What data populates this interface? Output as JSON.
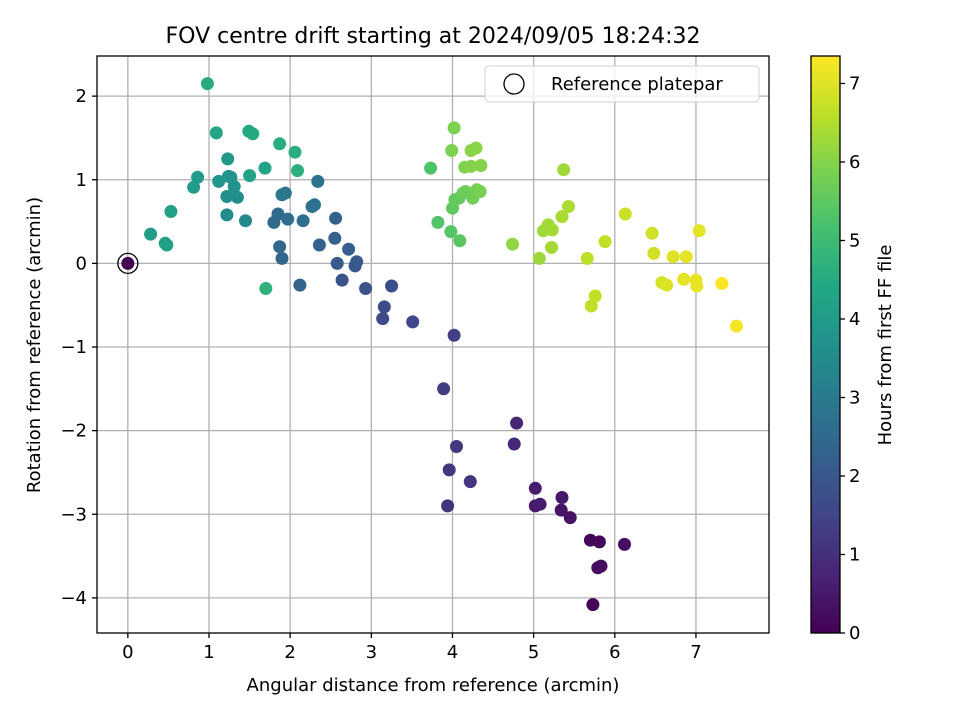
{
  "chart_data": {
    "type": "scatter",
    "title": "FOV centre drift starting at 2024/09/05 18:24:32",
    "xlabel": "Angular distance from reference (arcmin)",
    "ylabel": "Rotation from reference (arcmin)",
    "xlim": [
      -0.38,
      7.9
    ],
    "ylim": [
      -4.42,
      2.48
    ],
    "xticks": [
      0,
      1,
      2,
      3,
      4,
      5,
      6,
      7
    ],
    "yticks": [
      -4,
      -3,
      -2,
      -1,
      0,
      1,
      2
    ],
    "grid": true,
    "colormap": "viridis",
    "colorbar": {
      "label": "Hours from first FF file",
      "range": [
        0,
        7.35
      ],
      "ticks": [
        0,
        1,
        2,
        3,
        4,
        5,
        6,
        7
      ]
    },
    "legend": {
      "position": "upper-right",
      "entries": [
        {
          "label": "Reference platepar",
          "marker": "open-circle",
          "color": "#000000"
        }
      ]
    },
    "reference_point": {
      "x": 0,
      "y": 0,
      "hours": 0
    },
    "points": [
      {
        "x": 5.73,
        "y": -4.08,
        "hours": 0.08
      },
      {
        "x": 5.7,
        "y": -3.31,
        "hours": 0.12
      },
      {
        "x": 5.81,
        "y": -3.33,
        "hours": 0.16
      },
      {
        "x": 5.79,
        "y": -3.64,
        "hours": 0.2
      },
      {
        "x": 5.83,
        "y": -3.62,
        "hours": 0.24
      },
      {
        "x": 6.12,
        "y": -3.36,
        "hours": 0.28
      },
      {
        "x": 5.45,
        "y": -3.04,
        "hours": 0.35
      },
      {
        "x": 5.34,
        "y": -2.95,
        "hours": 0.4
      },
      {
        "x": 5.35,
        "y": -2.8,
        "hours": 0.45
      },
      {
        "x": 5.02,
        "y": -2.9,
        "hours": 0.5
      },
      {
        "x": 5.08,
        "y": -2.88,
        "hours": 0.55
      },
      {
        "x": 5.02,
        "y": -2.69,
        "hours": 0.6
      },
      {
        "x": 4.79,
        "y": -1.91,
        "hours": 0.75
      },
      {
        "x": 4.76,
        "y": -2.16,
        "hours": 0.8
      },
      {
        "x": 3.94,
        "y": -2.9,
        "hours": 1.05
      },
      {
        "x": 4.22,
        "y": -2.61,
        "hours": 1.1
      },
      {
        "x": 3.96,
        "y": -2.47,
        "hours": 1.15
      },
      {
        "x": 4.05,
        "y": -2.19,
        "hours": 1.2
      },
      {
        "x": 3.89,
        "y": -1.5,
        "hours": 1.3
      },
      {
        "x": 4.02,
        "y": -0.86,
        "hours": 1.4
      },
      {
        "x": 3.51,
        "y": -0.7,
        "hours": 1.55
      },
      {
        "x": 3.14,
        "y": -0.66,
        "hours": 1.65
      },
      {
        "x": 3.16,
        "y": -0.52,
        "hours": 1.7
      },
      {
        "x": 3.25,
        "y": -0.27,
        "hours": 1.75
      },
      {
        "x": 2.93,
        "y": -0.3,
        "hours": 1.85
      },
      {
        "x": 2.64,
        "y": -0.2,
        "hours": 1.9
      },
      {
        "x": 2.8,
        "y": -0.03,
        "hours": 2.0
      },
      {
        "x": 2.82,
        "y": 0.02,
        "hours": 2.05
      },
      {
        "x": 2.58,
        "y": 0.0,
        "hours": 2.1
      },
      {
        "x": 2.72,
        "y": 0.17,
        "hours": 2.15
      },
      {
        "x": 2.55,
        "y": 0.3,
        "hours": 2.2
      },
      {
        "x": 2.36,
        "y": 0.22,
        "hours": 2.25
      },
      {
        "x": 2.56,
        "y": 0.54,
        "hours": 2.3
      },
      {
        "x": 2.12,
        "y": -0.26,
        "hours": 2.35
      },
      {
        "x": 1.9,
        "y": 0.06,
        "hours": 2.4
      },
      {
        "x": 1.87,
        "y": 0.2,
        "hours": 2.45
      },
      {
        "x": 1.85,
        "y": 0.59,
        "hours": 2.5
      },
      {
        "x": 1.8,
        "y": 0.49,
        "hours": 2.55
      },
      {
        "x": 1.97,
        "y": 0.53,
        "hours": 2.6
      },
      {
        "x": 2.16,
        "y": 0.51,
        "hours": 2.65
      },
      {
        "x": 2.27,
        "y": 0.68,
        "hours": 2.7
      },
      {
        "x": 2.3,
        "y": 0.7,
        "hours": 2.75
      },
      {
        "x": 2.34,
        "y": 0.98,
        "hours": 2.8
      },
      {
        "x": 1.9,
        "y": 0.82,
        "hours": 2.85
      },
      {
        "x": 1.94,
        "y": 0.84,
        "hours": 2.9
      },
      {
        "x": 1.45,
        "y": 0.51,
        "hours": 3.4
      },
      {
        "x": 1.22,
        "y": 0.58,
        "hours": 3.5
      },
      {
        "x": 1.35,
        "y": 0.79,
        "hours": 3.6
      },
      {
        "x": 1.22,
        "y": 0.8,
        "hours": 3.65
      },
      {
        "x": 1.31,
        "y": 0.92,
        "hours": 3.7
      },
      {
        "x": 1.27,
        "y": 1.03,
        "hours": 3.75
      },
      {
        "x": 1.24,
        "y": 1.04,
        "hours": 3.8
      },
      {
        "x": 1.12,
        "y": 0.98,
        "hours": 3.85
      },
      {
        "x": 1.23,
        "y": 1.25,
        "hours": 3.9
      },
      {
        "x": 0.81,
        "y": 0.91,
        "hours": 3.95
      },
      {
        "x": 0.86,
        "y": 1.03,
        "hours": 4.0
      },
      {
        "x": 0.28,
        "y": 0.35,
        "hours": 4.05
      },
      {
        "x": 0.46,
        "y": 0.24,
        "hours": 4.1
      },
      {
        "x": 0.48,
        "y": 0.22,
        "hours": 4.15
      },
      {
        "x": 0.53,
        "y": 0.62,
        "hours": 4.2
      },
      {
        "x": 1.5,
        "y": 1.05,
        "hours": 4.25
      },
      {
        "x": 1.69,
        "y": 1.14,
        "hours": 4.3
      },
      {
        "x": 1.09,
        "y": 1.56,
        "hours": 4.35
      },
      {
        "x": 1.49,
        "y": 1.58,
        "hours": 4.4
      },
      {
        "x": 1.54,
        "y": 1.55,
        "hours": 4.45
      },
      {
        "x": 0.98,
        "y": 2.15,
        "hours": 4.5
      },
      {
        "x": 1.87,
        "y": 1.43,
        "hours": 4.55
      },
      {
        "x": 2.06,
        "y": 1.33,
        "hours": 4.6
      },
      {
        "x": 2.09,
        "y": 1.11,
        "hours": 4.65
      },
      {
        "x": 1.7,
        "y": -0.3,
        "hours": 4.7
      },
      {
        "x": 3.73,
        "y": 1.14,
        "hours": 5.3
      },
      {
        "x": 3.82,
        "y": 0.49,
        "hours": 5.35
      },
      {
        "x": 3.98,
        "y": 0.38,
        "hours": 5.4
      },
      {
        "x": 4.09,
        "y": 0.27,
        "hours": 5.45
      },
      {
        "x": 4.0,
        "y": 0.66,
        "hours": 5.5
      },
      {
        "x": 4.03,
        "y": 0.76,
        "hours": 5.55
      },
      {
        "x": 4.08,
        "y": 0.78,
        "hours": 5.6
      },
      {
        "x": 4.13,
        "y": 0.84,
        "hours": 5.65
      },
      {
        "x": 4.16,
        "y": 0.86,
        "hours": 5.7
      },
      {
        "x": 4.25,
        "y": 0.78,
        "hours": 5.75
      },
      {
        "x": 4.3,
        "y": 0.88,
        "hours": 5.8
      },
      {
        "x": 4.34,
        "y": 0.86,
        "hours": 5.85
      },
      {
        "x": 3.99,
        "y": 1.35,
        "hours": 5.9
      },
      {
        "x": 4.15,
        "y": 1.15,
        "hours": 5.95
      },
      {
        "x": 4.23,
        "y": 1.16,
        "hours": 6.0
      },
      {
        "x": 4.35,
        "y": 1.17,
        "hours": 6.0
      },
      {
        "x": 4.23,
        "y": 1.35,
        "hours": 6.05
      },
      {
        "x": 4.29,
        "y": 1.38,
        "hours": 6.05
      },
      {
        "x": 4.02,
        "y": 1.62,
        "hours": 5.9
      },
      {
        "x": 4.74,
        "y": 0.23,
        "hours": 6.15
      },
      {
        "x": 5.07,
        "y": 0.06,
        "hours": 6.25
      },
      {
        "x": 5.12,
        "y": 0.39,
        "hours": 6.3
      },
      {
        "x": 5.18,
        "y": 0.46,
        "hours": 6.3
      },
      {
        "x": 5.23,
        "y": 0.4,
        "hours": 6.35
      },
      {
        "x": 5.22,
        "y": 0.19,
        "hours": 6.35
      },
      {
        "x": 5.35,
        "y": 0.56,
        "hours": 6.4
      },
      {
        "x": 5.43,
        "y": 0.68,
        "hours": 6.4
      },
      {
        "x": 5.37,
        "y": 1.12,
        "hours": 6.3
      },
      {
        "x": 5.66,
        "y": 0.06,
        "hours": 6.6
      },
      {
        "x": 5.71,
        "y": -0.51,
        "hours": 6.65
      },
      {
        "x": 5.76,
        "y": -0.39,
        "hours": 6.65
      },
      {
        "x": 5.88,
        "y": 0.26,
        "hours": 6.7
      },
      {
        "x": 6.13,
        "y": 0.59,
        "hours": 6.75
      },
      {
        "x": 6.46,
        "y": 0.36,
        "hours": 6.8
      },
      {
        "x": 6.48,
        "y": 0.12,
        "hours": 6.85
      },
      {
        "x": 6.58,
        "y": -0.23,
        "hours": 6.9
      },
      {
        "x": 6.64,
        "y": -0.26,
        "hours": 6.95
      },
      {
        "x": 6.72,
        "y": 0.08,
        "hours": 7.0
      },
      {
        "x": 6.85,
        "y": -0.19,
        "hours": 7.05
      },
      {
        "x": 6.88,
        "y": 0.08,
        "hours": 7.05
      },
      {
        "x": 7.01,
        "y": -0.27,
        "hours": 7.1
      },
      {
        "x": 7.0,
        "y": -0.2,
        "hours": 7.1
      },
      {
        "x": 7.04,
        "y": 0.39,
        "hours": 7.05
      },
      {
        "x": 7.32,
        "y": -0.24,
        "hours": 7.3
      },
      {
        "x": 7.5,
        "y": -0.75,
        "hours": 7.25
      }
    ]
  }
}
